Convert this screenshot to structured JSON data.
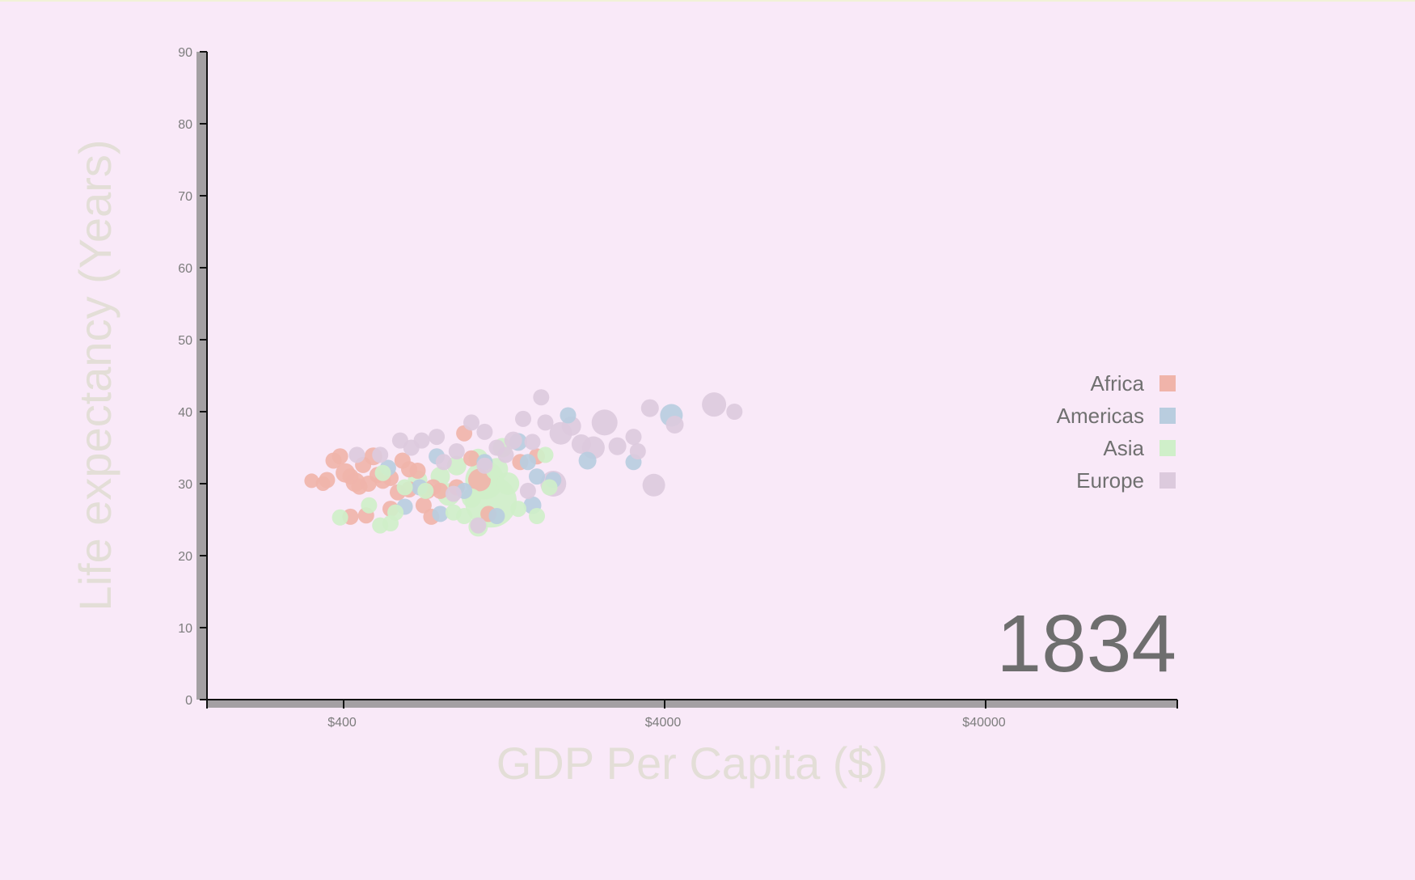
{
  "chart_data": {
    "type": "scatter",
    "title": "",
    "year": "1834",
    "xlabel": "GDP Per Capita ($)",
    "ylabel": "Life expectancy (Years)",
    "x_scale": "log",
    "xlim": [
      170,
      75000
    ],
    "ylim": [
      0,
      90
    ],
    "x_ticks": [
      {
        "value": 400,
        "label": "$400"
      },
      {
        "value": 4000,
        "label": "$4000"
      },
      {
        "value": 40000,
        "label": "$40000"
      }
    ],
    "y_ticks": [
      0,
      10,
      20,
      30,
      40,
      50,
      60,
      70,
      80,
      90
    ],
    "legend": {
      "position": "right"
    },
    "series": [
      {
        "name": "Africa",
        "color": "#f0b4aa",
        "points": [
          [
            318,
            30.4,
            4.5
          ],
          [
            345,
            30.0,
            4.5
          ],
          [
            355,
            30.5,
            5
          ],
          [
            372,
            33.2,
            5
          ],
          [
            390,
            33.8,
            5
          ],
          [
            405,
            31.5,
            6
          ],
          [
            420,
            31.0,
            5
          ],
          [
            435,
            30.2,
            6
          ],
          [
            448,
            29.6,
            5
          ],
          [
            460,
            32.6,
            5
          ],
          [
            478,
            30.0,
            5
          ],
          [
            495,
            33.8,
            5.5
          ],
          [
            510,
            31.2,
            5
          ],
          [
            530,
            30.4,
            5
          ],
          [
            560,
            30.8,
            5
          ],
          [
            590,
            28.8,
            5
          ],
          [
            610,
            33.2,
            5
          ],
          [
            640,
            29.2,
            5
          ],
          [
            680,
            31.8,
            5
          ],
          [
            710,
            27.0,
            5
          ],
          [
            730,
            29.0,
            5
          ],
          [
            760,
            29.5,
            5
          ],
          [
            800,
            29.0,
            5
          ],
          [
            900,
            29.5,
            5
          ],
          [
            950,
            37.0,
            5
          ],
          [
            1000,
            33.5,
            5
          ],
          [
            1060,
            30.5,
            7
          ],
          [
            1130,
            25.8,
            5
          ],
          [
            1420,
            33.0,
            5
          ],
          [
            1600,
            33.8,
            5
          ],
          [
            420,
            25.4,
            5
          ],
          [
            470,
            25.6,
            5
          ],
          [
            560,
            26.5,
            5
          ],
          [
            750,
            25.4,
            5
          ],
          [
            640,
            32.0,
            5
          ]
        ]
      },
      {
        "name": "Americas",
        "color": "#b9cddf",
        "points": [
          [
            550,
            32.2,
            5
          ],
          [
            620,
            26.8,
            5
          ],
          [
            690,
            29.5,
            5
          ],
          [
            780,
            33.8,
            5
          ],
          [
            800,
            25.8,
            5
          ],
          [
            950,
            29.0,
            5
          ],
          [
            1100,
            33.0,
            5
          ],
          [
            1200,
            25.5,
            5
          ],
          [
            1400,
            35.8,
            5.5
          ],
          [
            1500,
            33.0,
            5
          ],
          [
            1550,
            27.0,
            5.5
          ],
          [
            1600,
            31.0,
            5
          ],
          [
            1800,
            30.5,
            5
          ],
          [
            2000,
            39.5,
            5
          ],
          [
            2300,
            33.2,
            5.5
          ],
          [
            3200,
            33.0,
            5
          ],
          [
            4200,
            39.5,
            7
          ]
        ]
      },
      {
        "name": "Asia",
        "color": "#cfefc9",
        "points": [
          [
            390,
            25.3,
            5
          ],
          [
            480,
            27.0,
            5
          ],
          [
            520,
            24.2,
            5
          ],
          [
            530,
            31.5,
            5
          ],
          [
            560,
            24.5,
            5
          ],
          [
            620,
            29.5,
            5
          ],
          [
            680,
            30.5,
            6
          ],
          [
            720,
            29.0,
            5
          ],
          [
            800,
            31.0,
            6
          ],
          [
            850,
            28.5,
            7
          ],
          [
            880,
            26.0,
            5
          ],
          [
            900,
            32.5,
            6
          ],
          [
            950,
            25.5,
            5
          ],
          [
            1000,
            28.0,
            6
          ],
          [
            1050,
            33.5,
            6
          ],
          [
            1100,
            30.5,
            12
          ],
          [
            1150,
            27.5,
            16
          ],
          [
            1200,
            32.0,
            7
          ],
          [
            1250,
            35.0,
            6
          ],
          [
            1300,
            30.0,
            7
          ],
          [
            1400,
            26.5,
            5
          ],
          [
            1600,
            25.5,
            5
          ],
          [
            1700,
            34.0,
            5
          ],
          [
            1750,
            29.5,
            5
          ],
          [
            1050,
            24.0,
            6
          ],
          [
            580,
            26.0,
            5
          ]
        ]
      },
      {
        "name": "Europe",
        "color": "#dccadd",
        "points": [
          [
            440,
            34.0,
            5
          ],
          [
            520,
            34.0,
            5
          ],
          [
            600,
            36.0,
            5
          ],
          [
            650,
            35.0,
            5
          ],
          [
            700,
            36.0,
            5
          ],
          [
            780,
            36.5,
            5
          ],
          [
            820,
            33.0,
            5
          ],
          [
            900,
            34.5,
            5
          ],
          [
            1000,
            38.5,
            5
          ],
          [
            1100,
            37.2,
            5
          ],
          [
            1200,
            35.0,
            5
          ],
          [
            1280,
            34.0,
            5
          ],
          [
            1350,
            36.0,
            5.5
          ],
          [
            1450,
            39.0,
            5
          ],
          [
            1550,
            35.8,
            5
          ],
          [
            1650,
            42.0,
            5
          ],
          [
            1700,
            38.5,
            5
          ],
          [
            1800,
            30.0,
            8
          ],
          [
            1900,
            37.0,
            7
          ],
          [
            2050,
            38.0,
            6
          ],
          [
            2200,
            35.5,
            6
          ],
          [
            2400,
            35.0,
            7
          ],
          [
            2600,
            38.5,
            8
          ],
          [
            2850,
            35.2,
            5.5
          ],
          [
            3200,
            36.5,
            5
          ],
          [
            3300,
            34.5,
            5
          ],
          [
            3600,
            40.5,
            5.5
          ],
          [
            4300,
            38.2,
            5.5
          ],
          [
            5700,
            41.0,
            7.5
          ],
          [
            6600,
            40.0,
            5
          ],
          [
            3700,
            29.8,
            7
          ],
          [
            1050,
            24.2,
            5
          ],
          [
            880,
            28.6,
            5
          ],
          [
            1500,
            29.0,
            5
          ],
          [
            1100,
            32.5,
            5
          ]
        ]
      }
    ]
  }
}
